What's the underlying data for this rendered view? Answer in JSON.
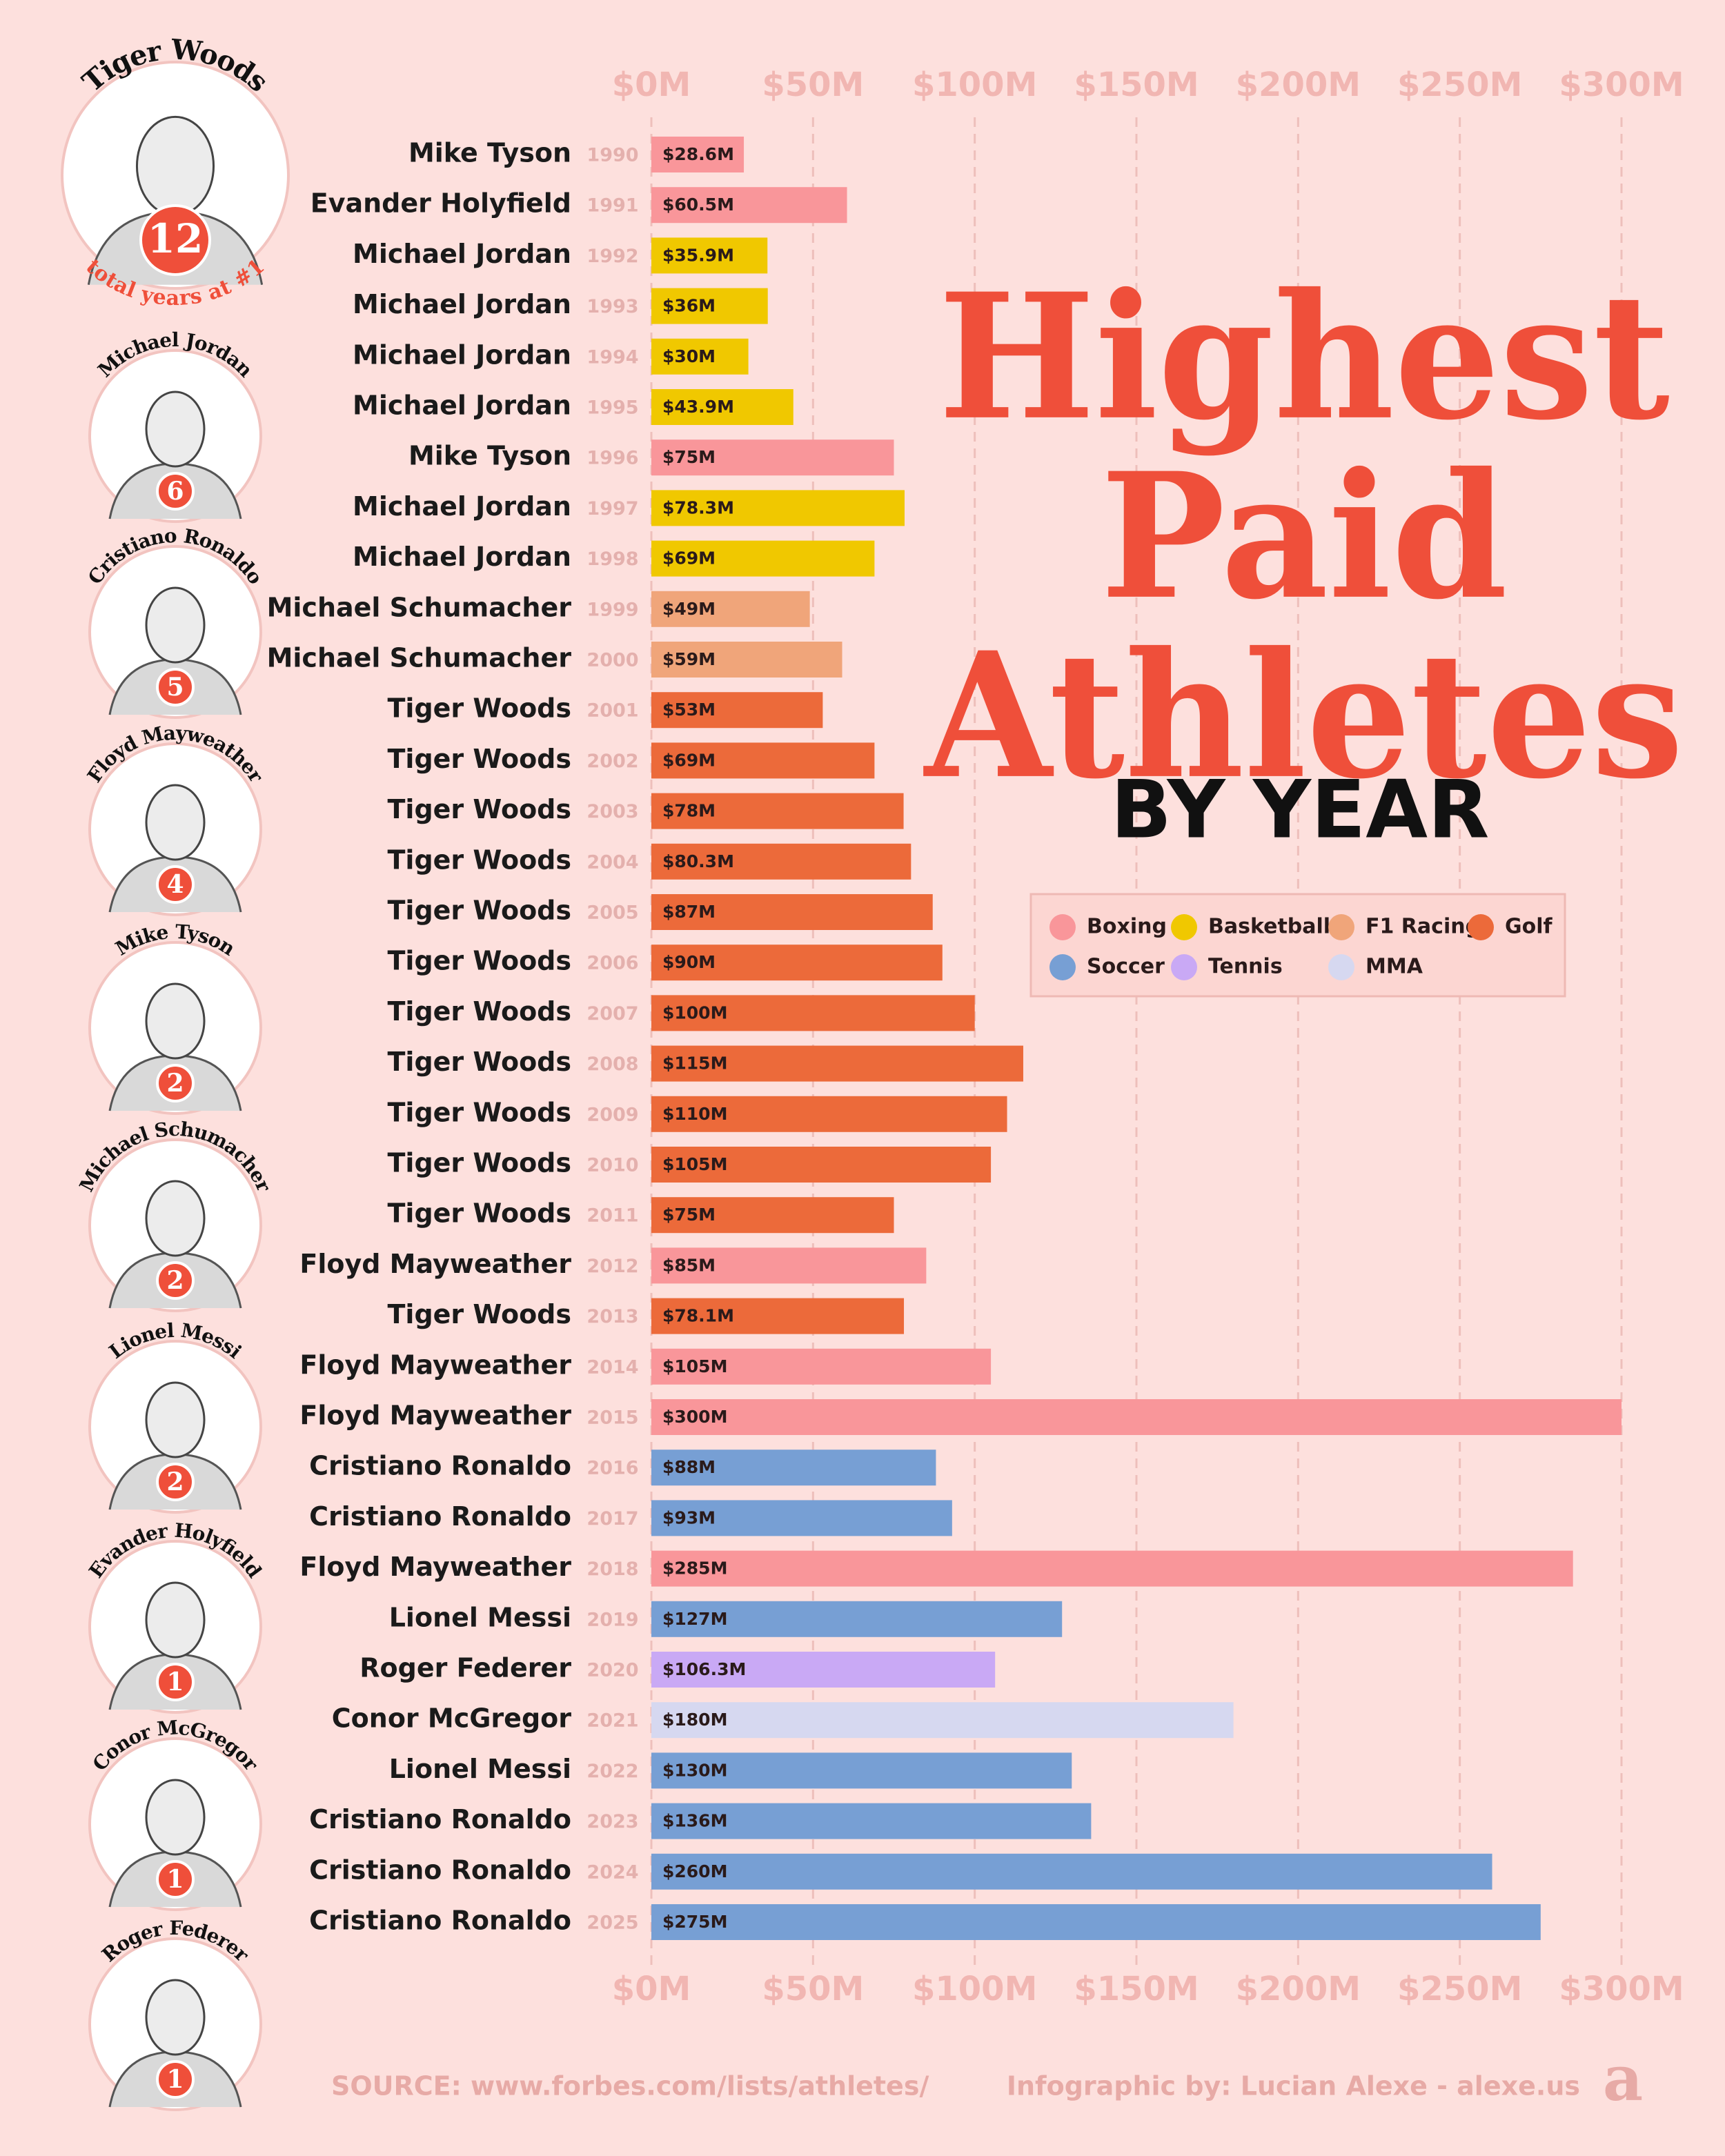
{
  "chart_data": {
    "type": "bar",
    "orientation": "horizontal",
    "title": [
      "Highest",
      "Paid",
      "Athletes"
    ],
    "subtitle": "BY YEAR",
    "categories": [
      "Mike Tyson",
      "Evander Holyfield",
      "Michael Jordan",
      "Michael Jordan",
      "Michael Jordan",
      "Michael Jordan",
      "Mike Tyson",
      "Michael Jordan",
      "Michael Jordan",
      "Michael Schumacher",
      "Michael Schumacher",
      "Tiger Woods",
      "Tiger Woods",
      "Tiger Woods",
      "Tiger Woods",
      "Tiger Woods",
      "Tiger Woods",
      "Tiger Woods",
      "Tiger Woods",
      "Tiger Woods",
      "Tiger Woods",
      "Tiger Woods",
      "Floyd Mayweather",
      "Tiger Woods",
      "Floyd Mayweather",
      "Floyd Mayweather",
      "Cristiano Ronaldo",
      "Cristiano Ronaldo",
      "Floyd Mayweather",
      "Lionel Messi",
      "Roger Federer",
      "Conor McGregor",
      "Lionel Messi",
      "Cristiano Ronaldo",
      "Cristiano Ronaldo",
      "Cristiano Ronaldo"
    ],
    "years": [
      "1990",
      "1991",
      "1992",
      "1993",
      "1994",
      "1995",
      "1996",
      "1997",
      "1998",
      "1999",
      "2000",
      "2001",
      "2002",
      "2003",
      "2004",
      "2005",
      "2006",
      "2007",
      "2008",
      "2009",
      "2010",
      "2011",
      "2012",
      "2013",
      "2014",
      "2015",
      "2016",
      "2017",
      "2018",
      "2019",
      "2020",
      "2021",
      "2022",
      "2023",
      "2024",
      "2025"
    ],
    "values": [
      28.6,
      60.5,
      35.9,
      36,
      30,
      43.9,
      75,
      78.3,
      69,
      49,
      59,
      53,
      69,
      78,
      80.3,
      87,
      90,
      100,
      115,
      110,
      105,
      75,
      85,
      78.1,
      105,
      300,
      88,
      93,
      285,
      127,
      106.3,
      180,
      130,
      136,
      260,
      275
    ],
    "value_labels": [
      "$28.6M",
      "$60.5M",
      "$35.9M",
      "$36M",
      "$30M",
      "$43.9M",
      "$75M",
      "$78.3M",
      "$69M",
      "$49M",
      "$59M",
      "$53M",
      "$69M",
      "$78M",
      "$80.3M",
      "$87M",
      "$90M",
      "$100M",
      "$115M",
      "$110M",
      "$105M",
      "$75M",
      "$85M",
      "$78.1M",
      "$105M",
      "$300M",
      "$88M",
      "$93M",
      "$285M",
      "$127M",
      "$106.3M",
      "$180M",
      "$130M",
      "$136M",
      "$260M",
      "$275M"
    ],
    "colors": [
      "#f9969a",
      "#f9969a",
      "#f0c800",
      "#f0c800",
      "#f0c800",
      "#f0c800",
      "#f9969a",
      "#f0c800",
      "#f0c800",
      "#f0a57a",
      "#f0a57a",
      "#ec6a3a",
      "#ec6a3a",
      "#ec6a3a",
      "#ec6a3a",
      "#ec6a3a",
      "#ec6a3a",
      "#ec6a3a",
      "#ec6a3a",
      "#ec6a3a",
      "#ec6a3a",
      "#ec6a3a",
      "#f9969a",
      "#ec6a3a",
      "#f9969a",
      "#f9969a",
      "#779fd4",
      "#779fd4",
      "#f9969a",
      "#779fd4",
      "#c9a9f5",
      "#d6d8f0",
      "#779fd4",
      "#779fd4",
      "#779fd4",
      "#779fd4"
    ],
    "xlim": [
      0,
      300
    ],
    "xticks": [
      {
        "value": 0,
        "label": "$0M"
      },
      {
        "value": 50,
        "label": "$50M"
      },
      {
        "value": 100,
        "label": "$100M"
      },
      {
        "value": 150,
        "label": "$150M"
      },
      {
        "value": 200,
        "label": "$200M"
      },
      {
        "value": 250,
        "label": "$250M"
      },
      {
        "value": 300,
        "label": "$300M"
      }
    ],
    "grid": true,
    "legend": {
      "position": "right",
      "items": [
        {
          "name": "Boxing",
          "color": "#f9969a"
        },
        {
          "name": "Basketball",
          "color": "#f0c800"
        },
        {
          "name": "F1 Racing",
          "color": "#f0a57a"
        },
        {
          "name": "Golf",
          "color": "#ec6a3a"
        },
        {
          "name": "Soccer",
          "color": "#779fd4"
        },
        {
          "name": "Tennis",
          "color": "#c9a9f5"
        },
        {
          "name": "MMA",
          "color": "#d6d8f0"
        }
      ]
    }
  },
  "sidebar": {
    "caption": "total years at #1",
    "athletes": [
      {
        "name": "Tiger Woods",
        "count": "12"
      },
      {
        "name": "Michael Jordan",
        "count": "6"
      },
      {
        "name": "Cristiano Ronaldo",
        "count": "5"
      },
      {
        "name": "Floyd Mayweather",
        "count": "4"
      },
      {
        "name": "Mike Tyson",
        "count": "2"
      },
      {
        "name": "Michael Schumacher",
        "count": "2"
      },
      {
        "name": "Lionel Messi",
        "count": "2"
      },
      {
        "name": "Evander Holyfield",
        "count": "1"
      },
      {
        "name": "Conor McGregor",
        "count": "1"
      },
      {
        "name": "Roger Federer",
        "count": "1"
      }
    ]
  },
  "footer": {
    "source": "SOURCE: www.forbes.com/lists/athletes/",
    "credit": "Infographic by: Lucian Alexe - alexe.us",
    "logo": "a"
  }
}
